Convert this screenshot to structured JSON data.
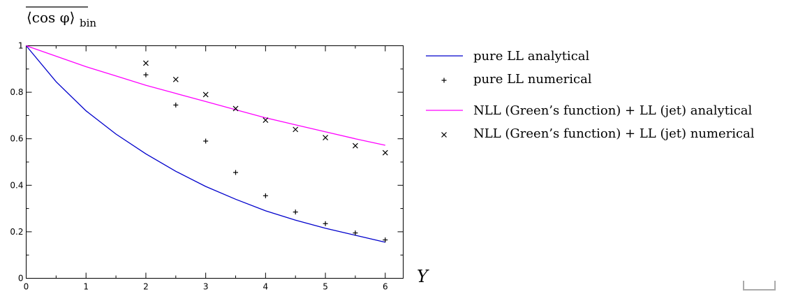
{
  "chart_data": {
    "type": "line",
    "ylabel_main": "⟨cos φ⟩",
    "ylabel_sub": "bin",
    "xlabel": "Y",
    "xlim": [
      0,
      6.3
    ],
    "ylim": [
      0,
      1
    ],
    "x_ticks": [
      0,
      1,
      2,
      3,
      4,
      5,
      6
    ],
    "y_ticks": [
      0,
      0.2,
      0.4,
      0.6,
      0.8,
      1
    ],
    "x_tick_labels": [
      "0",
      "1",
      "2",
      "3",
      "4",
      "5",
      "6"
    ],
    "y_tick_labels": [
      "0",
      "0.2",
      "0.4",
      "0.6",
      "0.8",
      "1"
    ],
    "grid": false,
    "legend_position": "right",
    "series": [
      {
        "name": "pure LL analytical",
        "kind": "line",
        "color": "#0000cc",
        "x": [
          0,
          0.5,
          1,
          1.5,
          2,
          2.5,
          3,
          3.5,
          4,
          4.5,
          5,
          5.5,
          6
        ],
        "y": [
          1.0,
          0.845,
          0.72,
          0.62,
          0.535,
          0.46,
          0.395,
          0.34,
          0.29,
          0.25,
          0.215,
          0.185,
          0.155
        ]
      },
      {
        "name": "pure LL numerical",
        "kind": "marker",
        "marker": "plus",
        "color": "#000000",
        "x": [
          2,
          2.5,
          3,
          3.5,
          4,
          4.5,
          5,
          5.5,
          6
        ],
        "y": [
          0.875,
          0.745,
          0.59,
          0.455,
          0.355,
          0.285,
          0.235,
          0.195,
          0.165
        ]
      },
      {
        "name": "NLL (Green’s function) + LL (jet) analytical",
        "kind": "line",
        "color": "#ff00ff",
        "x": [
          0,
          0.5,
          1,
          1.5,
          2,
          2.5,
          3,
          3.5,
          4,
          4.5,
          5,
          5.5,
          6
        ],
        "y": [
          1.0,
          0.955,
          0.91,
          0.87,
          0.83,
          0.795,
          0.76,
          0.725,
          0.69,
          0.66,
          0.63,
          0.6,
          0.572
        ]
      },
      {
        "name": "NLL (Green’s function) + LL (jet) numerical",
        "kind": "marker",
        "marker": "cross",
        "color": "#000000",
        "x": [
          2,
          2.5,
          3,
          3.5,
          4,
          4.5,
          5,
          5.5,
          6
        ],
        "y": [
          0.925,
          0.855,
          0.79,
          0.73,
          0.68,
          0.64,
          0.605,
          0.57,
          0.54
        ]
      }
    ]
  }
}
